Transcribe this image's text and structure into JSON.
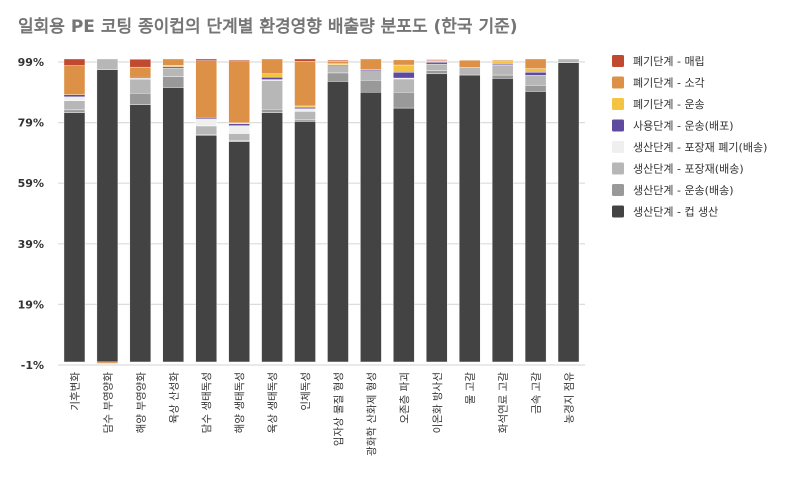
{
  "chart_data": {
    "type": "bar",
    "stacked": true,
    "title": "일회용 PE 코팅 종이컵의 단계별 환경영향 배출량 분포도 (한국 기준)",
    "xlabel": "",
    "ylabel": "",
    "ylim": [
      -1,
      99
    ],
    "yticks": [
      "99%",
      "79%",
      "59%",
      "39%",
      "19%",
      "-1%"
    ],
    "ytick_values": [
      99,
      79,
      59,
      39,
      19,
      -1
    ],
    "grid": true,
    "legend_position": "right",
    "categories": [
      "기후변화",
      "담수 부영양화",
      "해양 부영양화",
      "육상 산성화",
      "담수 생태독성",
      "해양 생태독성",
      "육상 생태독성",
      "인체독성",
      "입자상 물질 형성",
      "광화학 산화제 형성",
      "오존층 파괴",
      "이온화 방사선",
      "물 고갈",
      "화석연료 고갈",
      "금속 고갈",
      "농경지 점유"
    ],
    "series": [
      {
        "name": "생산단계 - 컵 생산",
        "color": "#434343",
        "values": [
          82.3,
          96.5,
          84.9,
          90.6,
          74.8,
          72.7,
          82.3,
          79.4,
          92.6,
          89.0,
          83.8,
          95.1,
          94.7,
          93.6,
          89.3,
          98.8
        ]
      },
      {
        "name": "생산단계 - 운송(배송)",
        "color": "#999999",
        "values": [
          0.9,
          0,
          3.8,
          3.6,
          0.3,
          0.3,
          1.1,
          0.5,
          2.8,
          4.0,
          5.2,
          1.0,
          0,
          1.1,
          2.0,
          0
        ]
      },
      {
        "name": "생산단계 - 포장재(배송)",
        "color": "#b7b7b7",
        "values": [
          3.0,
          3.5,
          4.7,
          2.8,
          2.8,
          2.4,
          9.5,
          2.8,
          2.4,
          3.1,
          4.4,
          2.2,
          2.5,
          3.2,
          3.3,
          1.2
        ]
      },
      {
        "name": "생산단계 - 포장재 폐기(배송)",
        "color": "#efefef",
        "values": [
          1.3,
          0,
          0.2,
          0,
          2.2,
          2.6,
          0.3,
          0.9,
          0,
          0,
          0.3,
          0,
          0,
          0,
          0,
          0
        ]
      },
      {
        "name": "사용단계 - 운송(배포)",
        "color": "#5e4ba0",
        "values": [
          0.7,
          0,
          0.4,
          0.5,
          0.4,
          0.6,
          0.8,
          0.5,
          0.3,
          0.4,
          1.9,
          0.6,
          0,
          0.4,
          1.0,
          0
        ]
      },
      {
        "name": "폐기단계 - 운송",
        "color": "#f5c342",
        "values": [
          0,
          0,
          0,
          0.4,
          0,
          0.3,
          1.1,
          0.4,
          0.3,
          0,
          2.4,
          0.3,
          0,
          0.8,
          1.2,
          0
        ]
      },
      {
        "name": "폐기단계 - 소각",
        "color": "#dc9146",
        "values": [
          9.6,
          -0.5,
          3.3,
          2.1,
          18.9,
          20.2,
          4.9,
          14.7,
          0.8,
          3.5,
          1.7,
          0.3,
          2.4,
          0.5,
          3.2,
          0
        ]
      },
      {
        "name": "폐기단계 - 매립",
        "color": "#c0492f",
        "values": [
          2.2,
          0,
          2.6,
          0,
          0.6,
          0.5,
          0,
          0.8,
          0.4,
          0,
          0,
          0.3,
          0,
          0,
          0,
          0
        ]
      }
    ]
  }
}
